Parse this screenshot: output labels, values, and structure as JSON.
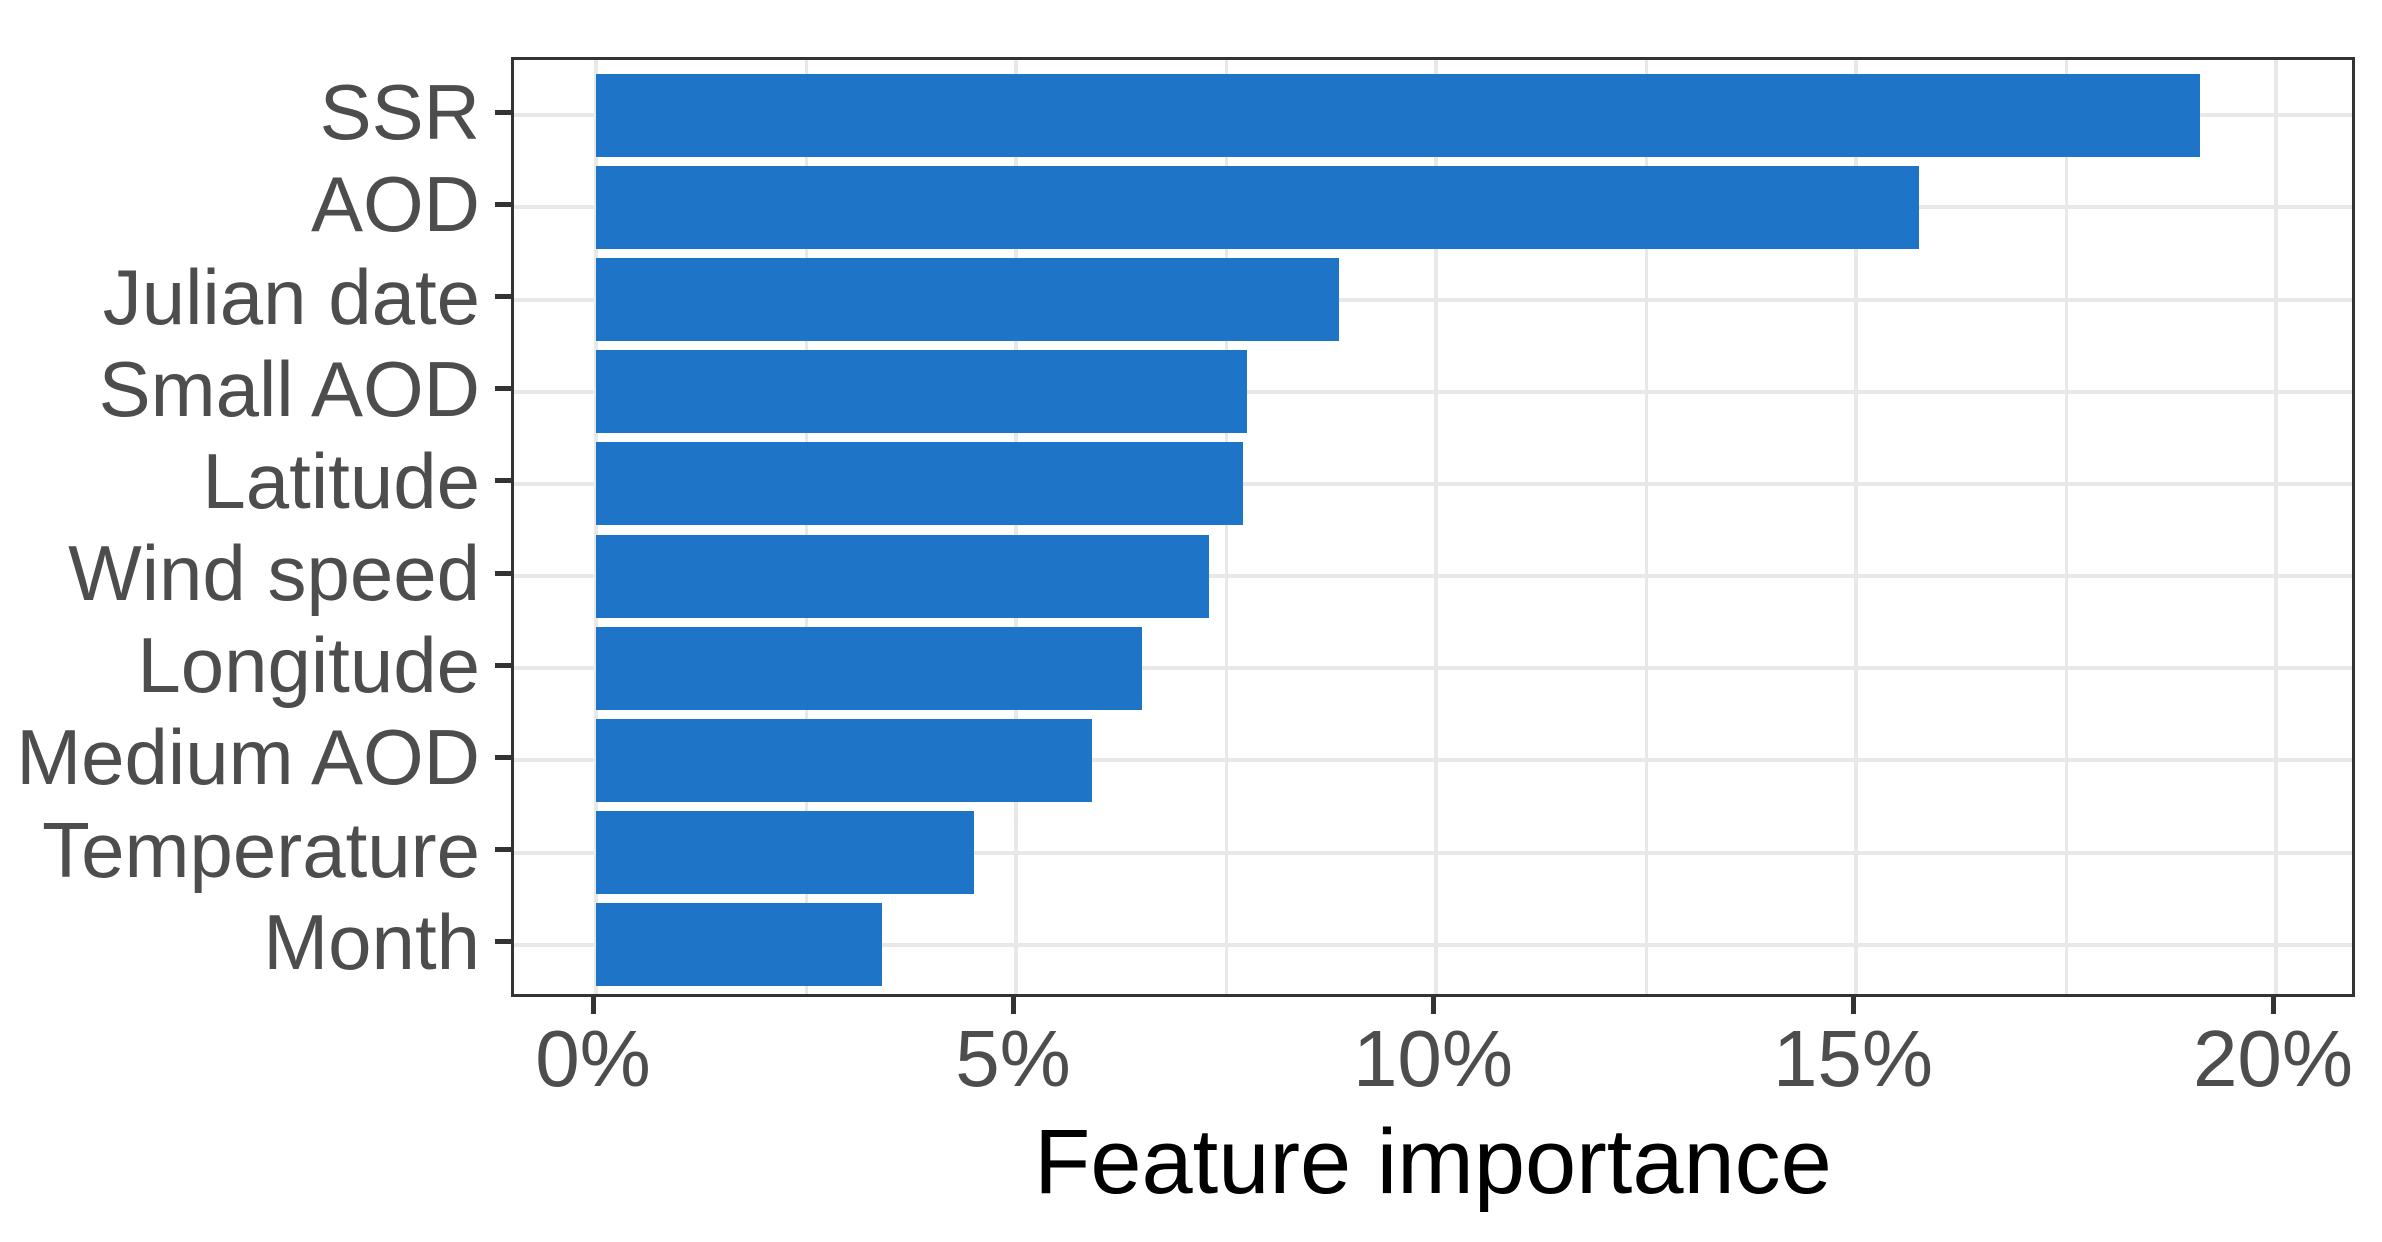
{
  "chart_data": {
    "type": "bar",
    "orientation": "horizontal",
    "title": "",
    "xlabel": "Feature importance",
    "ylabel": "",
    "categories": [
      "SSR",
      "AOD",
      "Julian date",
      "Small AOD",
      "Latitude",
      "Wind speed",
      "Longitude",
      "Medium AOD",
      "Temperature",
      "Month"
    ],
    "values": [
      19.1,
      15.75,
      8.85,
      7.75,
      7.7,
      7.3,
      6.5,
      5.9,
      4.5,
      3.4
    ],
    "value_unit": "%",
    "xlim": [
      0,
      20
    ],
    "x_tick_values": [
      0,
      5,
      10,
      15,
      20
    ],
    "x_tick_labels": [
      "0%",
      "5%",
      "10%",
      "15%",
      "20%"
    ],
    "x_minor_tick_values": [
      2.5,
      7.5,
      12.5,
      17.5
    ],
    "grid": "vertical major+minor, horizontal major per category",
    "legend": "none"
  },
  "colors": {
    "bar": "#1e75c8",
    "gridline": "#e8e8e8",
    "axis_line": "#333333",
    "tick_mark": "#333333",
    "axis_text": "#4d4d4d",
    "axis_title": "#000000",
    "background": "#ffffff"
  }
}
